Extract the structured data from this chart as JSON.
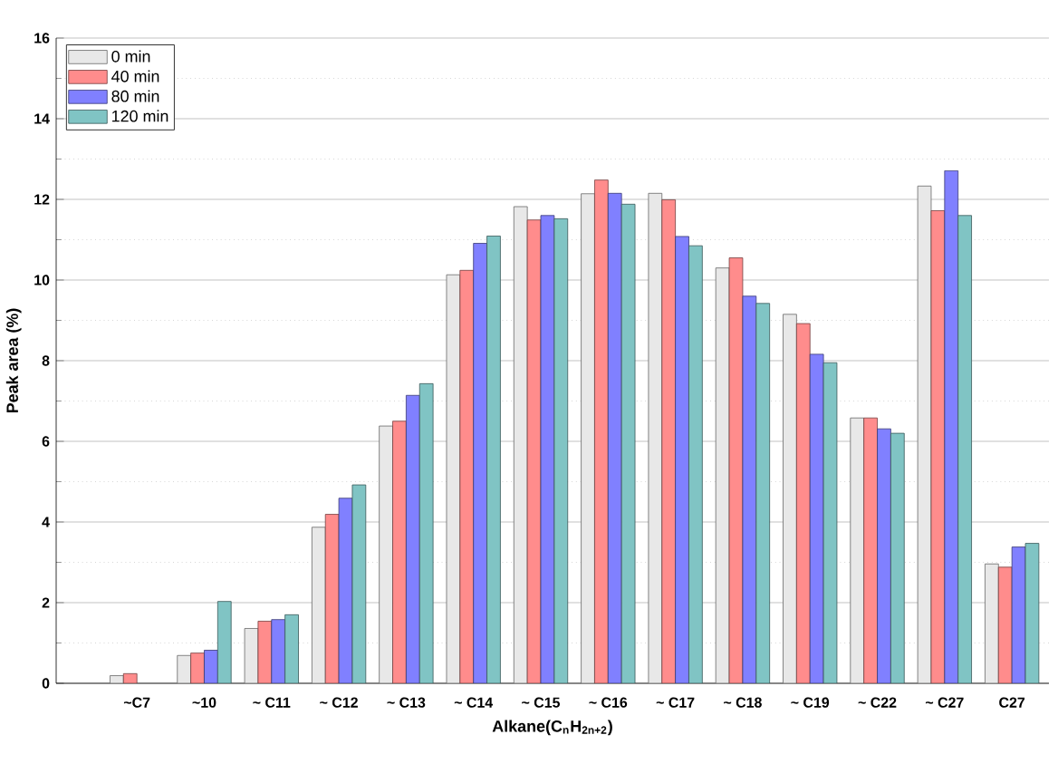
{
  "chart_data": {
    "type": "bar",
    "xlabel": "Alkane(C$_{n}$H$_{2n+2}$)",
    "ylabel": "Peak area (%)",
    "categories": [
      "~C7",
      "~10",
      "~ C11",
      "~ C12",
      "~ C13",
      "~ C14",
      "~ C15",
      "~ C16",
      "~ C17",
      "~ C18",
      "~ C19",
      "~ C22",
      "~ C27",
      "C27"
    ],
    "series": [
      {
        "name": "0 min",
        "color": "#e8e8e8",
        "values": [
          0.19,
          0.69,
          1.36,
          3.87,
          6.38,
          10.13,
          11.82,
          12.14,
          12.15,
          10.3,
          9.15,
          6.58,
          12.33,
          2.96
        ]
      },
      {
        "name": "40 min",
        "color": "#ff8c8c",
        "values": [
          0.24,
          0.75,
          1.54,
          4.19,
          6.5,
          10.24,
          11.49,
          12.48,
          11.99,
          10.55,
          8.92,
          6.58,
          11.72,
          2.88
        ]
      },
      {
        "name": "80 min",
        "color": "#8080ff",
        "values": [
          null,
          0.82,
          1.58,
          4.59,
          7.14,
          10.91,
          11.6,
          12.15,
          11.08,
          9.6,
          8.16,
          6.31,
          12.71,
          3.38
        ]
      },
      {
        "name": "120 min",
        "color": "#80c4c4",
        "values": [
          null,
          2.03,
          1.7,
          4.92,
          7.43,
          11.09,
          11.52,
          11.88,
          10.85,
          9.42,
          7.95,
          6.2,
          11.6,
          3.47
        ]
      }
    ],
    "ylim": [
      0,
      16
    ],
    "yticks": [
      0,
      2,
      4,
      6,
      8,
      10,
      12,
      14,
      16
    ],
    "grid": "y",
    "legend": "top left"
  }
}
